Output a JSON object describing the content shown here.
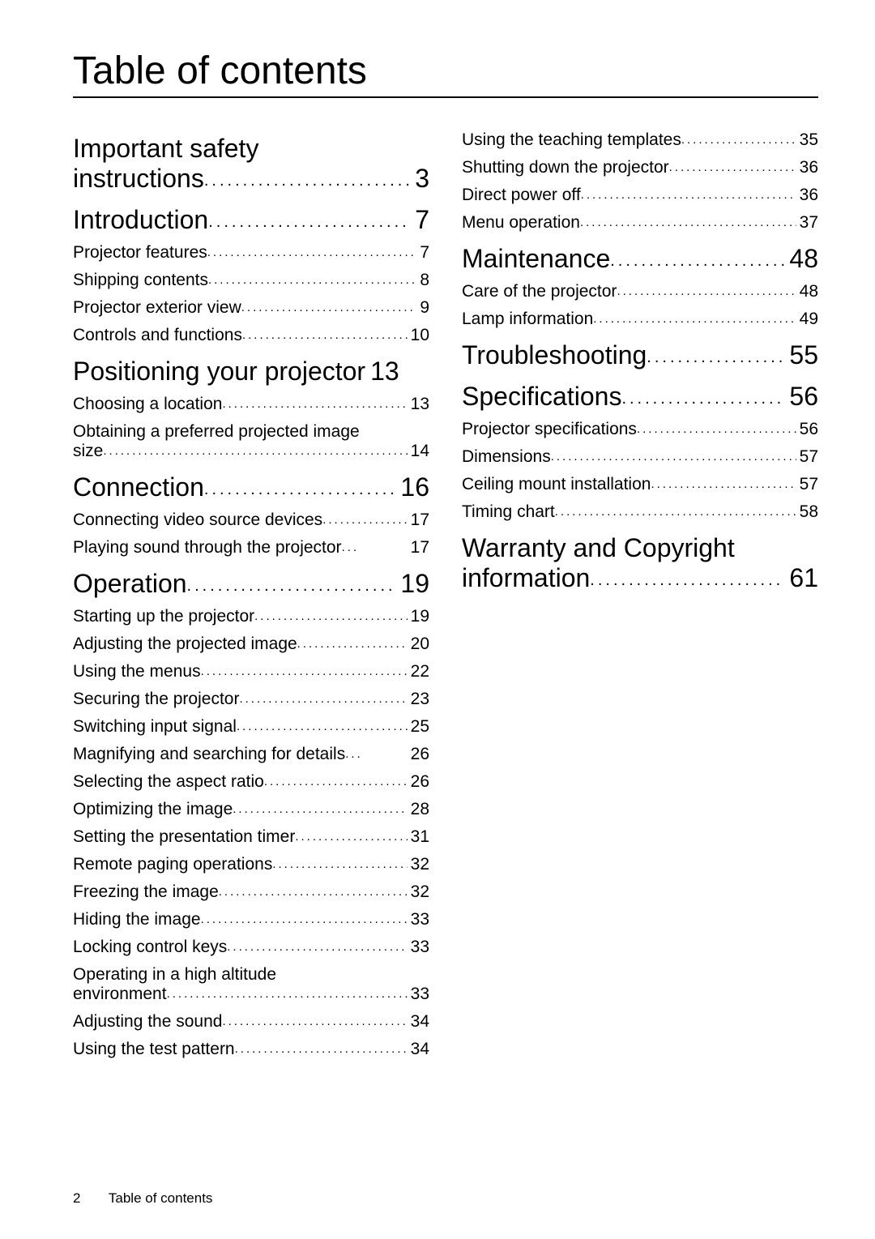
{
  "title": "Table of contents",
  "footer": {
    "page": "2",
    "label": "Table of contents"
  },
  "left": [
    {
      "type": "head2",
      "line1": "Important safety",
      "line2": "instructions",
      "page": "3"
    },
    {
      "type": "head",
      "label": "Introduction",
      "page": "7"
    },
    {
      "type": "entry",
      "label": "Projector features",
      "page": "7"
    },
    {
      "type": "entry",
      "label": "Shipping contents",
      "page": "8"
    },
    {
      "type": "entry",
      "label": "Projector exterior view",
      "page": "9"
    },
    {
      "type": "entry",
      "label": "Controls and functions",
      "page": "10"
    },
    {
      "type": "head",
      "label": "Positioning your projector",
      "page": "13",
      "nopad": true
    },
    {
      "type": "entry",
      "label": "Choosing a location",
      "page": "13"
    },
    {
      "type": "entrywrap",
      "label": "Obtaining a preferred projected image",
      "sub": "size",
      "page": "14"
    },
    {
      "type": "head",
      "label": "Connection",
      "page": "16"
    },
    {
      "type": "entry",
      "label": "Connecting video source devices",
      "page": "17"
    },
    {
      "type": "entry",
      "label": "Playing sound through the projector",
      "page": "17",
      "tight": true
    },
    {
      "type": "head",
      "label": "Operation",
      "page": "19"
    },
    {
      "type": "entry",
      "label": "Starting up the projector",
      "page": "19"
    },
    {
      "type": "entry",
      "label": "Adjusting the projected image",
      "page": "20"
    },
    {
      "type": "entry",
      "label": "Using the menus",
      "page": "22"
    },
    {
      "type": "entry",
      "label": "Securing the projector",
      "page": "23"
    },
    {
      "type": "entry",
      "label": "Switching input signal",
      "page": "25"
    },
    {
      "type": "entry",
      "label": "Magnifying and searching for details",
      "page": "26",
      "tight": true
    },
    {
      "type": "entry",
      "label": "Selecting the aspect ratio",
      "page": "26"
    },
    {
      "type": "entry",
      "label": "Optimizing the image",
      "page": "28"
    },
    {
      "type": "entry",
      "label": "Setting the presentation timer",
      "page": "31"
    },
    {
      "type": "entry",
      "label": "Remote paging operations",
      "page": "32"
    },
    {
      "type": "entry",
      "label": "Freezing the image",
      "page": "32"
    },
    {
      "type": "entry",
      "label": "Hiding the image",
      "page": "33"
    },
    {
      "type": "entry",
      "label": "Locking control keys",
      "page": "33"
    },
    {
      "type": "entrywrap",
      "label": "Operating in a high altitude",
      "sub": "environment",
      "page": "33"
    },
    {
      "type": "entry",
      "label": "Adjusting the sound",
      "page": "34"
    },
    {
      "type": "entry",
      "label": "Using the test pattern",
      "page": "34"
    }
  ],
  "right": [
    {
      "type": "entry",
      "label": "Using the teaching templates",
      "page": "35"
    },
    {
      "type": "entry",
      "label": "Shutting down the projector",
      "page": "36"
    },
    {
      "type": "entry",
      "label": "Direct power off",
      "page": "36"
    },
    {
      "type": "entry",
      "label": "Menu operation",
      "page": "37"
    },
    {
      "type": "head",
      "label": "Maintenance",
      "page": "48"
    },
    {
      "type": "entry",
      "label": "Care of the projector",
      "page": "48"
    },
    {
      "type": "entry",
      "label": "Lamp information",
      "page": "49"
    },
    {
      "type": "head",
      "label": "Troubleshooting",
      "page": "55"
    },
    {
      "type": "head",
      "label": "Specifications",
      "page": "56"
    },
    {
      "type": "entry",
      "label": "Projector specifications",
      "page": "56"
    },
    {
      "type": "entry",
      "label": "Dimensions",
      "page": "57"
    },
    {
      "type": "entry",
      "label": "Ceiling mount installation",
      "page": "57"
    },
    {
      "type": "entry",
      "label": "Timing chart",
      "page": "58"
    },
    {
      "type": "head2",
      "line1": "Warranty and Copyright",
      "line2": "information",
      "page": "61"
    }
  ],
  "dots": "........................................................................"
}
